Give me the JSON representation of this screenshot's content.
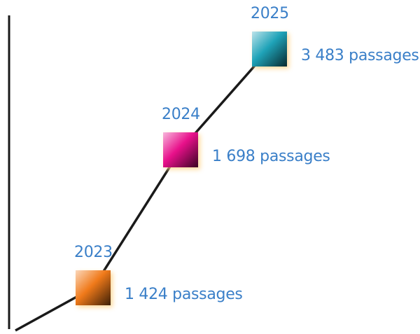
{
  "chart_data": {
    "type": "line",
    "title": "",
    "xlabel": "",
    "ylabel": "",
    "x": [
      "2023",
      "2024",
      "2025"
    ],
    "series": [
      {
        "values": [
          1424,
          1698,
          3483
        ],
        "value_labels": [
          "1 424 passages",
          "1 698 passages",
          "3 483 passages"
        ],
        "marker_colors": [
          "#f07a1a",
          "#e8108a",
          "#1fa3b8"
        ]
      }
    ],
    "grid": false,
    "legend": "none"
  },
  "colors": {
    "label_text": "#3a7fc8",
    "line": "#1a1a1a",
    "axis": "#1a1a1a",
    "marker_glow": "#ffd48a"
  }
}
